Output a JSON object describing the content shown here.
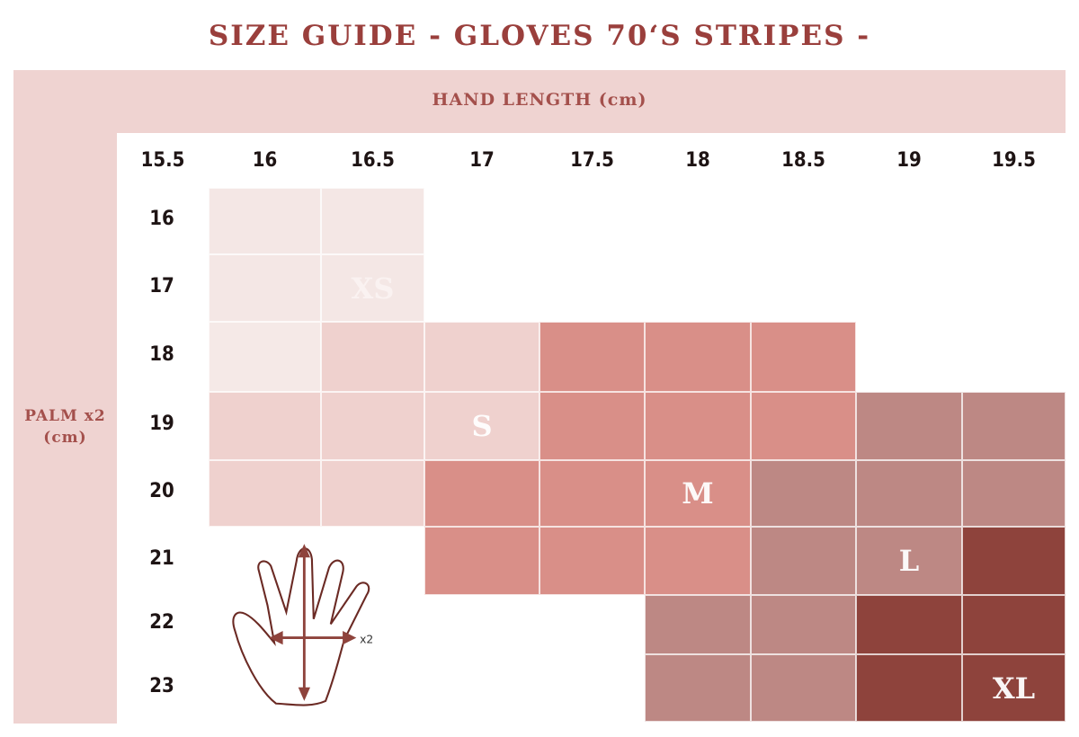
{
  "title": "SIZE GUIDE - GLOVES 70‘S STRIPES -",
  "hand_length_label": "HAND LENGTH (cm)",
  "palm_label_line1": "PALM x2",
  "palm_label_line2": "(cm)",
  "hand_length_values": [
    "15.5",
    "16",
    "16.5",
    "17",
    "17.5",
    "18",
    "18.5",
    "19",
    "19.5"
  ],
  "palm_values": [
    "16",
    "17",
    "18",
    "19",
    "20",
    "21",
    "22",
    "23"
  ],
  "size_colors": {
    "XS0": "#f5e9e7",
    "XS": "#f4e7e5",
    "S": "#efd1ce",
    "M": "#d98f88",
    "L": "#bd8884",
    "XL": "#8e433c"
  },
  "size_grid": [
    [
      null,
      "XS",
      "XS",
      null,
      null,
      null,
      null,
      null,
      null
    ],
    [
      null,
      "XS",
      "XS",
      null,
      null,
      null,
      null,
      null,
      null
    ],
    [
      null,
      "XS0",
      "S",
      "S",
      "M",
      "M",
      "M",
      null,
      null
    ],
    [
      null,
      "S",
      "S",
      "S",
      "M",
      "M",
      "M",
      "L",
      "L"
    ],
    [
      null,
      "S",
      "S",
      "M",
      "M",
      "M",
      "L",
      "L",
      "L"
    ],
    [
      null,
      null,
      null,
      "M",
      "M",
      "M",
      "L",
      "L",
      "XL"
    ],
    [
      null,
      null,
      null,
      null,
      null,
      "L",
      "L",
      "XL",
      "XL"
    ],
    [
      null,
      null,
      null,
      null,
      null,
      "L",
      "L",
      "XL",
      "XL"
    ]
  ],
  "size_labels": [
    {
      "text": "XS",
      "palm": "17",
      "length": "16.5"
    },
    {
      "text": "S",
      "palm": "19",
      "length": "17"
    },
    {
      "text": "M",
      "palm": "20",
      "length": "18"
    },
    {
      "text": "L",
      "palm": "21",
      "length": "19"
    },
    {
      "text": "XL",
      "palm": "23",
      "length": "19.5"
    }
  ],
  "hand_diagram_multiplier": "x2"
}
